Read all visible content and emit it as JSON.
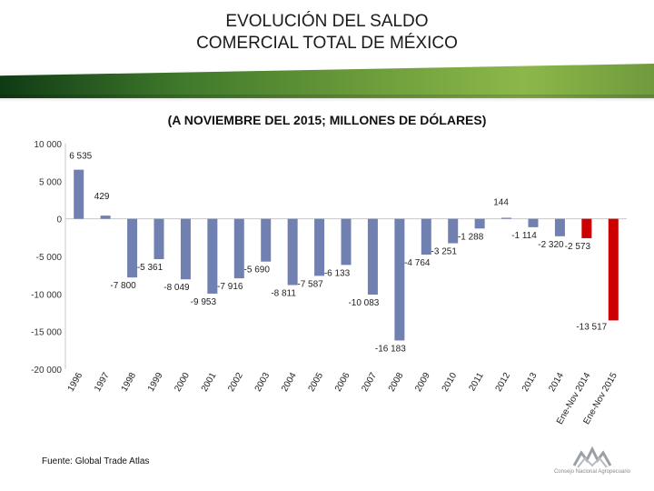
{
  "header": {
    "title": "EVOLUCIÓN DEL SALDO\nCOMERCIAL TOTAL DE MÉXICO",
    "subtitle": "(A NOVIEMBRE DEL 2015; MILLONES DE DÓLARES)"
  },
  "source": "Fuente:  Global Trade Atlas",
  "logo": {
    "text": "Consejo Nacional Agropecuario"
  },
  "colors": {
    "bar": "#7080b0",
    "bar_highlight": "#cc0000",
    "axis": "#c8c8c8"
  },
  "chart_data": {
    "type": "bar",
    "title": "",
    "xlabel": "",
    "ylabel": "",
    "ylim": [
      -20000,
      10000
    ],
    "yticks": [
      10000,
      5000,
      0,
      -5000,
      -10000,
      -15000,
      -20000
    ],
    "ytick_labels": [
      "10 000",
      "5 000",
      "0",
      "-5 000",
      "-10 000",
      "-15 000",
      "-20 000"
    ],
    "grid": false,
    "categories": [
      "1996",
      "1997",
      "1998",
      "1999",
      "2000",
      "2001",
      "2002",
      "2003",
      "2004",
      "2005",
      "2006",
      "2007",
      "2008",
      "2009",
      "2010",
      "2011",
      "2012",
      "2013",
      "2014",
      "Ene-Nov 2014",
      "Ene-Nov 2015"
    ],
    "values": [
      6535,
      429,
      -7800,
      -5361,
      -8049,
      -9953,
      -7916,
      -5690,
      -8811,
      -7587,
      -6133,
      -10083,
      -16183,
      -4764,
      -3251,
      -1288,
      144,
      -1114,
      -2320,
      -2573,
      -13517
    ],
    "value_labels": [
      "6 535",
      "429",
      "-7 800",
      "-5 361",
      "-8 049",
      "-9 953",
      "-7 916",
      "-5 690",
      "-8 811",
      "-7 587",
      "-6 133",
      "-10 083",
      "-16 183",
      "-4 764",
      "-3 251",
      "-1 288",
      "144",
      "-1 114",
      "-2 320",
      "-2 573",
      "-13 517"
    ],
    "highlight": [
      false,
      false,
      false,
      false,
      false,
      false,
      false,
      false,
      false,
      false,
      false,
      false,
      false,
      false,
      false,
      false,
      false,
      false,
      false,
      true,
      true
    ]
  }
}
